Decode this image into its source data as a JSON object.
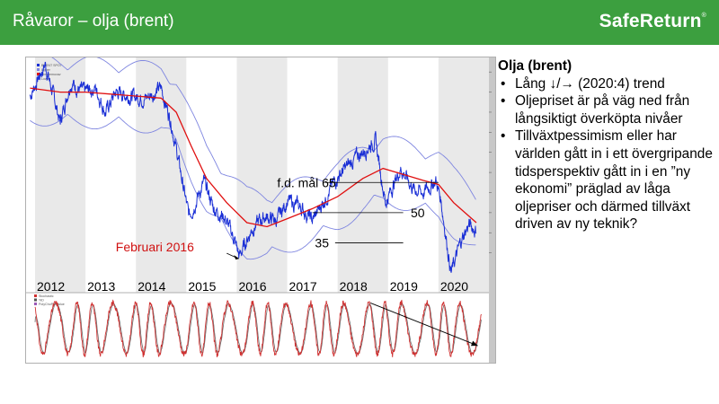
{
  "header": {
    "title": "Råvaror – olja (brent)",
    "brand": "SafeReturn",
    "brand_mark": "®"
  },
  "side": {
    "heading": "Olja (brent)",
    "bullets": [
      "Lång ↓/→ (2020:4) trend",
      "Oljepriset är på väg ned från långsiktigt överköpta nivåer",
      "Tillväxtpessimism eller har världen gått in i ett övergripande tidsperspektiv gått in i en ”ny ekonomi” präglad av låga oljepriser och därmed tillväxt driven av ny teknik?"
    ]
  },
  "colors": {
    "header_bg": "#3c9f3f",
    "price": "#1a2fd6",
    "ma": "#e01010",
    "bands": "#7f86e0",
    "osc": "#d03030",
    "shade": "#e9e9e9",
    "annotation_red": "#d01010"
  },
  "chart_data": {
    "type": "line",
    "title": "",
    "x_tick_labels": [
      "2012",
      "2013",
      "2014",
      "2015",
      "2016",
      "2017",
      "2018",
      "2019",
      "2020"
    ],
    "legend": [
      "BRENT SPOT",
      "Upper",
      "Simplemovav",
      "Lower"
    ],
    "osc_legend": [
      "Stochastic",
      "%D",
      "PolyChoPlotValue"
    ],
    "price": [
      [
        2011.9,
        108
      ],
      [
        2012.2,
        124
      ],
      [
        2012.5,
        95
      ],
      [
        2012.7,
        115
      ],
      [
        2012.95,
        110
      ],
      [
        2013.2,
        112
      ],
      [
        2013.4,
        100
      ],
      [
        2013.6,
        110
      ],
      [
        2013.9,
        108
      ],
      [
        2014.2,
        107
      ],
      [
        2014.5,
        112
      ],
      [
        2014.7,
        95
      ],
      [
        2014.85,
        75
      ],
      [
        2015.05,
        48
      ],
      [
        2015.35,
        65
      ],
      [
        2015.55,
        52
      ],
      [
        2015.75,
        48
      ],
      [
        2015.95,
        37
      ],
      [
        2016.05,
        28
      ],
      [
        2016.3,
        42
      ],
      [
        2016.55,
        48
      ],
      [
        2016.8,
        46
      ],
      [
        2017.0,
        56
      ],
      [
        2017.3,
        52
      ],
      [
        2017.5,
        46
      ],
      [
        2017.75,
        57
      ],
      [
        2018.0,
        68
      ],
      [
        2018.35,
        77
      ],
      [
        2018.75,
        86
      ],
      [
        2018.95,
        55
      ],
      [
        2019.25,
        72
      ],
      [
        2019.5,
        62
      ],
      [
        2019.7,
        60
      ],
      [
        2019.95,
        66
      ],
      [
        2020.05,
        56
      ],
      [
        2020.25,
        20
      ],
      [
        2020.45,
        36
      ],
      [
        2020.6,
        44
      ],
      [
        2020.75,
        41
      ]
    ],
    "moving_average": [
      [
        2011.9,
        112
      ],
      [
        2012.5,
        110
      ],
      [
        2013.0,
        110
      ],
      [
        2013.5,
        109
      ],
      [
        2014.0,
        108
      ],
      [
        2014.5,
        107
      ],
      [
        2014.8,
        100
      ],
      [
        2015.1,
        83
      ],
      [
        2015.4,
        67
      ],
      [
        2015.8,
        55
      ],
      [
        2016.2,
        45
      ],
      [
        2016.6,
        43
      ],
      [
        2017.0,
        47
      ],
      [
        2017.5,
        52
      ],
      [
        2018.0,
        58
      ],
      [
        2018.5,
        67
      ],
      [
        2018.9,
        72
      ],
      [
        2019.3,
        69
      ],
      [
        2019.7,
        66
      ],
      [
        2020.0,
        64
      ],
      [
        2020.3,
        55
      ],
      [
        2020.75,
        45
      ]
    ],
    "annotations": [
      {
        "text": "f.d. mål 65",
        "value": 65
      },
      {
        "text": "50",
        "value": 50
      },
      {
        "text": "35",
        "value": 35
      },
      {
        "text": "Februari 2016",
        "x": 2016.05,
        "value": 28
      }
    ]
  }
}
